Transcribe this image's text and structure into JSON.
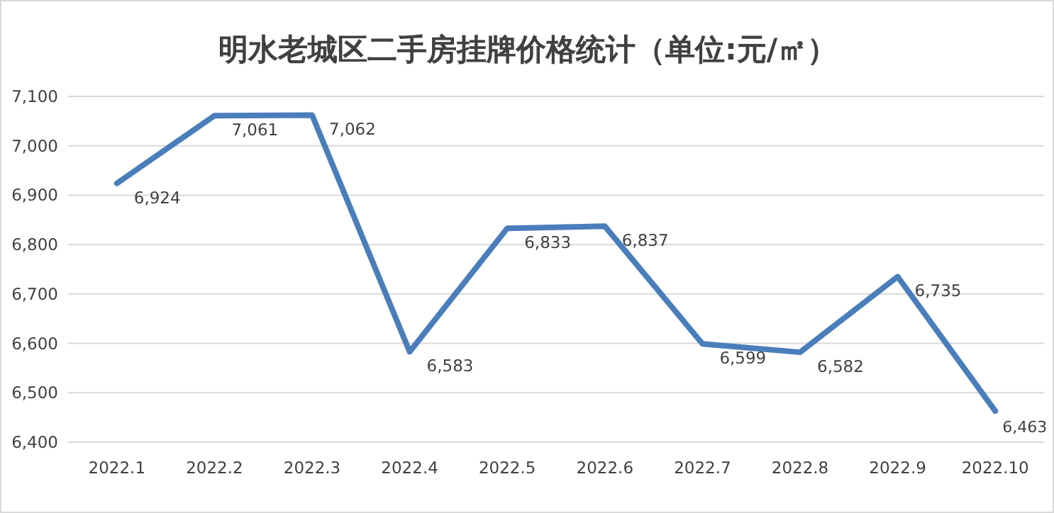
{
  "chart_data": {
    "type": "line",
    "title": "明水老城区二手房挂牌价格统计（单位:元/㎡）",
    "categories": [
      "2022.1",
      "2022.2",
      "2022.3",
      "2022.4",
      "2022.5",
      "2022.6",
      "2022.7",
      "2022.8",
      "2022.9",
      "2022.10"
    ],
    "series": [
      {
        "color": "#4a7ebb",
        "values": [
          6924,
          7061,
          7062,
          6583,
          6833,
          6837,
          6599,
          6582,
          6735,
          6463
        ],
        "value_labels": [
          "6,924",
          "7,061",
          "7,062",
          "6,583",
          "6,833",
          "6,837",
          "6,599",
          "6,582",
          "6,735",
          "6,463"
        ]
      }
    ],
    "ylim": [
      6400,
      7100
    ],
    "yticks": [
      {
        "value": 6400,
        "label": "6,400"
      },
      {
        "value": 6500,
        "label": "6,500"
      },
      {
        "value": 6600,
        "label": "6,600"
      },
      {
        "value": 6700,
        "label": "6,700"
      },
      {
        "value": 6800,
        "label": "6,800"
      },
      {
        "value": 6900,
        "label": "6,900"
      },
      {
        "value": 7000,
        "label": "7,000"
      },
      {
        "value": 7100,
        "label": "7,100"
      }
    ],
    "grid": "y",
    "marker": "none",
    "line_style": "solid"
  }
}
